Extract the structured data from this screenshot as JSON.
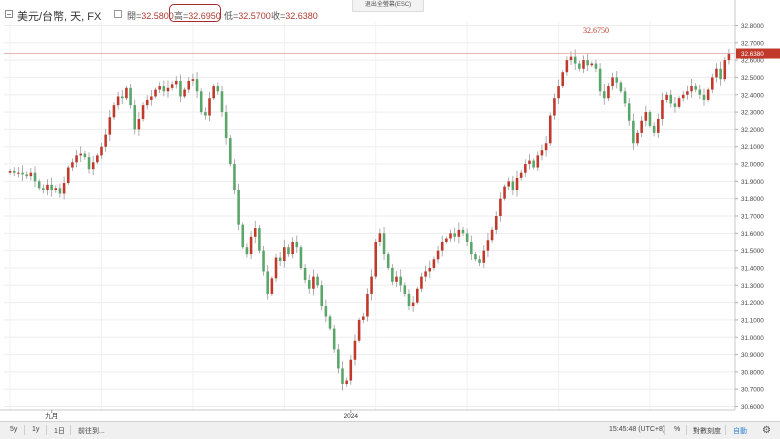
{
  "toolbar": {
    "exit_hint": "退出全螢幕(ESC)",
    "symbol": "美元/台幣, 天, FX",
    "ohlc": [
      {
        "label": "開",
        "value": "32.5800"
      },
      {
        "label": "高",
        "value": "32.6950"
      },
      {
        "label": "低",
        "value": "32.5700"
      },
      {
        "label": "收",
        "value": "32.6380"
      }
    ],
    "separator": "="
  },
  "chart_data": {
    "type": "candlestick",
    "up_color": "#c0392b",
    "down_color": "#5aa66a",
    "ylim": [
      30.58,
      32.82
    ],
    "y_ticks": [
      "32.8000",
      "32.7000",
      "32.6000",
      "32.5000",
      "32.4000",
      "32.3000",
      "32.2000",
      "32.1000",
      "32.0000",
      "31.9000",
      "31.8000",
      "31.7000",
      "31.6000",
      "31.5000",
      "31.4000",
      "31.3000",
      "31.2000",
      "31.1000",
      "31.0000",
      "30.9000",
      "30.8000",
      "30.7000",
      "30.6000"
    ],
    "y_tick_values": [
      32.8,
      32.7,
      32.6,
      32.5,
      32.4,
      32.3,
      32.2,
      32.1,
      32.0,
      31.9,
      31.8,
      31.7,
      31.6,
      31.5,
      31.4,
      31.3,
      31.2,
      31.1,
      31.0,
      30.9,
      30.8,
      30.7,
      30.6
    ],
    "x_labels": [
      {
        "label": "九月",
        "index": 10
      },
      {
        "label": "2024",
        "index": 82
      }
    ],
    "last_price": {
      "label": "32.6380",
      "value": 32.638
    },
    "annotations": [
      {
        "text": "32.6750",
        "value": 32.675,
        "index": 141
      }
    ],
    "closes": [
      31.96,
      31.95,
      31.95,
      31.94,
      31.93,
      31.95,
      31.9,
      31.86,
      31.85,
      31.88,
      31.85,
      31.86,
      31.83,
      31.89,
      31.98,
      32.01,
      32.05,
      32.06,
      32.04,
      31.97,
      32.01,
      32.05,
      32.1,
      32.17,
      32.27,
      32.34,
      32.39,
      32.38,
      32.44,
      32.34,
      32.2,
      32.26,
      32.34,
      32.37,
      32.39,
      32.43,
      32.45,
      32.42,
      32.44,
      32.46,
      32.48,
      32.39,
      32.43,
      32.48,
      32.49,
      32.42,
      32.3,
      32.28,
      32.38,
      32.45,
      32.42,
      32.3,
      32.15,
      32.0,
      31.85,
      31.65,
      31.52,
      31.48,
      31.58,
      31.63,
      31.5,
      31.38,
      31.25,
      31.34,
      31.46,
      31.44,
      31.52,
      31.48,
      31.55,
      31.52,
      31.4,
      31.33,
      31.28,
      31.35,
      31.3,
      31.18,
      31.12,
      31.05,
      30.93,
      30.82,
      30.73,
      30.75,
      30.87,
      30.98,
      31.1,
      31.12,
      31.25,
      31.35,
      31.55,
      31.6,
      31.48,
      31.4,
      31.32,
      31.35,
      31.3,
      31.25,
      31.18,
      31.2,
      31.28,
      31.35,
      31.38,
      31.4,
      31.45,
      31.5,
      31.55,
      31.57,
      31.6,
      31.58,
      31.62,
      31.6,
      31.55,
      31.48,
      31.45,
      31.43,
      31.5,
      31.56,
      31.62,
      31.7,
      31.8,
      31.87,
      31.9,
      31.85,
      31.92,
      31.95,
      32.0,
      32.02,
      31.98,
      32.05,
      32.08,
      32.12,
      32.28,
      32.38,
      32.45,
      32.53,
      32.6,
      32.62,
      32.58,
      32.55,
      32.6,
      32.57,
      32.58,
      32.55,
      32.42,
      32.38,
      32.45,
      32.5,
      32.47,
      32.42,
      32.35,
      32.25,
      32.12,
      32.18,
      32.25,
      32.3,
      32.22,
      32.18,
      32.26,
      32.37,
      32.4,
      32.35,
      32.33,
      32.38,
      32.4,
      32.42,
      32.45,
      32.43,
      32.4,
      32.37,
      32.43,
      32.5,
      32.55,
      32.49,
      32.6,
      32.638
    ]
  },
  "bottombar": {
    "ranges": [
      "5y",
      "1y",
      "1日"
    ],
    "goto": "前往到...",
    "time": "15:45:48 (UTC+8)",
    "percent": "%",
    "log": "對數刻度",
    "auto": "自動"
  }
}
